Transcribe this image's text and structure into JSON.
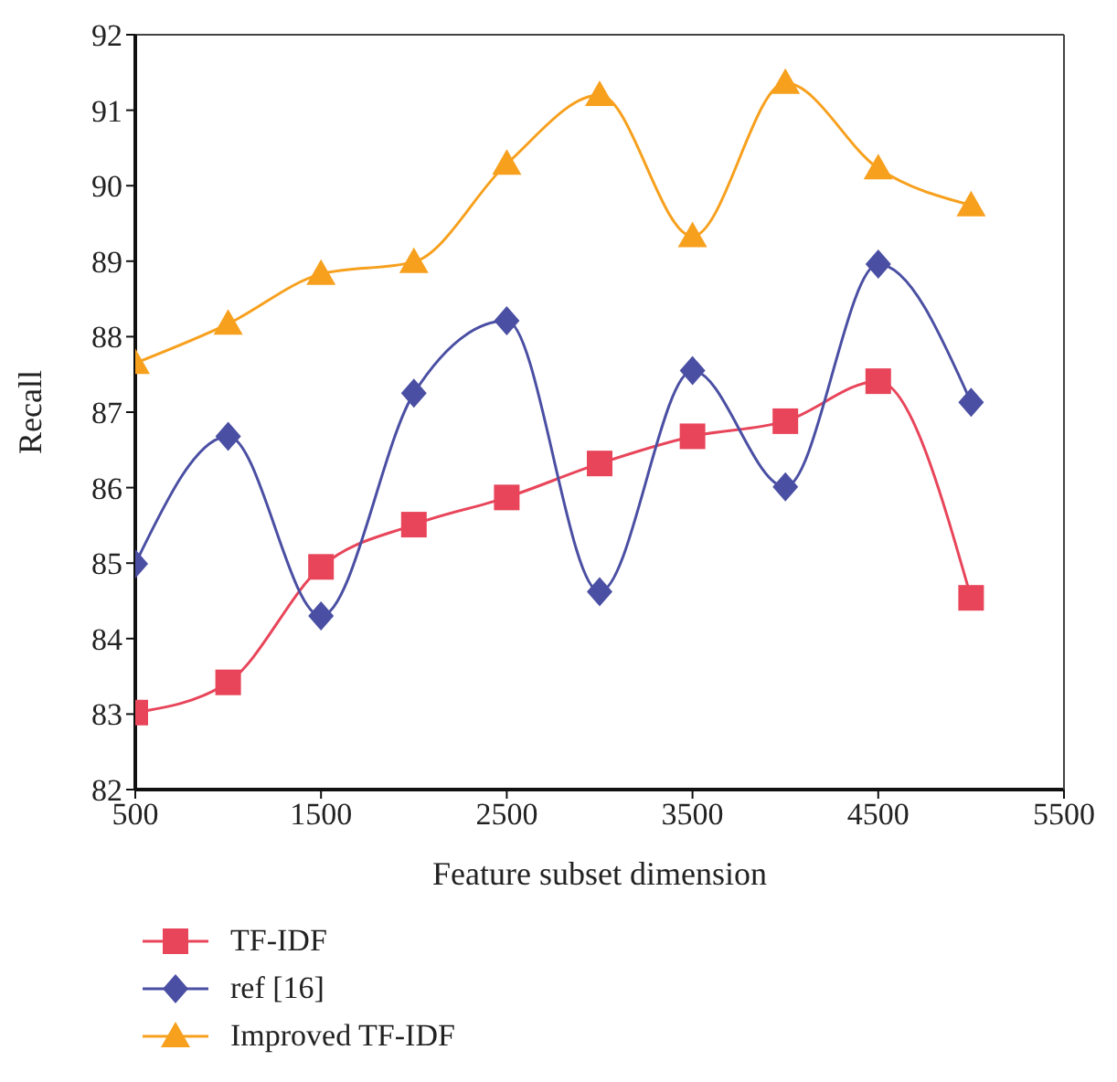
{
  "chart_data": {
    "type": "line",
    "xlabel": "Feature subset dimension",
    "ylabel": "Recall",
    "x": [
      500,
      1000,
      1500,
      2000,
      2500,
      3000,
      3500,
      4000,
      4500,
      5000
    ],
    "xlim": [
      500,
      5500
    ],
    "xticks": [
      500,
      1500,
      2500,
      3500,
      4500,
      5500
    ],
    "ylim": [
      82,
      92
    ],
    "yticks": [
      82,
      83,
      84,
      85,
      86,
      87,
      88,
      89,
      90,
      91,
      92
    ],
    "grid": false,
    "legend": "bottom",
    "line_style": "solid",
    "series": [
      {
        "name": "TF-IDF",
        "color": "#e8455a",
        "marker": "square",
        "values": [
          83.02,
          83.42,
          84.95,
          85.51,
          85.87,
          86.32,
          86.68,
          86.88,
          87.41,
          84.54
        ]
      },
      {
        "name": "ref [16]",
        "color": "#4a4fa3",
        "marker": "diamond",
        "values": [
          84.99,
          86.68,
          84.3,
          87.25,
          88.21,
          84.62,
          87.55,
          86.01,
          88.96,
          87.13
        ]
      },
      {
        "name": "Improved TF-IDF",
        "color": "#f7a01d",
        "marker": "triangle",
        "values": [
          87.65,
          88.17,
          88.83,
          88.99,
          90.29,
          91.2,
          89.33,
          91.36,
          90.23,
          89.74
        ]
      }
    ]
  }
}
